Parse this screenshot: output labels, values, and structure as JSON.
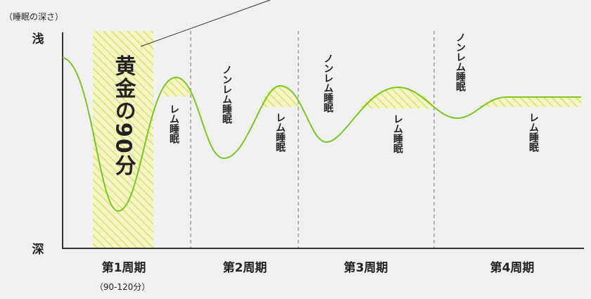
{
  "diagram": {
    "unit_label": "（睡眠の深さ）",
    "axis_top_label": "浅",
    "axis_bottom_label": "深",
    "golden_label": "黄金の90分",
    "rem_label": "レム睡眠",
    "nonrem_label": "ノンレム睡眠",
    "cycles": [
      {
        "label": "第1周期",
        "sub": "（90-120分）"
      },
      {
        "label": "第2周期",
        "sub": ""
      },
      {
        "label": "第3周期",
        "sub": ""
      },
      {
        "label": "第4周期",
        "sub": ""
      }
    ],
    "colors": {
      "curve": "#7fc324",
      "hatch_stripe": "#dfe483",
      "hatch_bg": "#f3f5c4",
      "axis": "#333333",
      "divider": "#888888",
      "text": "#222222"
    }
  }
}
